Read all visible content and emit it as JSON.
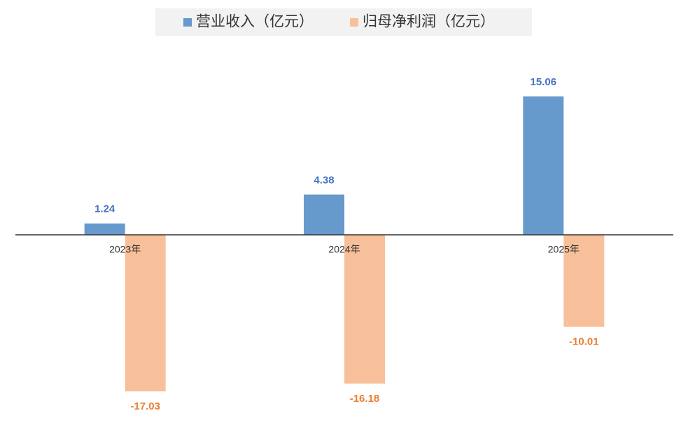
{
  "chart_data": {
    "type": "bar",
    "categories": [
      "2023年",
      "2024年",
      "2025年"
    ],
    "series": [
      {
        "name": "营业收入（亿元）",
        "color": "#6699cc",
        "label_color": "#4472c4",
        "values": [
          1.24,
          4.38,
          15.06
        ]
      },
      {
        "name": "归母净利润（亿元）",
        "color": "#f8c09a",
        "label_color": "#ed7d31",
        "values": [
          -17.03,
          -16.18,
          -10.01
        ]
      }
    ]
  }
}
